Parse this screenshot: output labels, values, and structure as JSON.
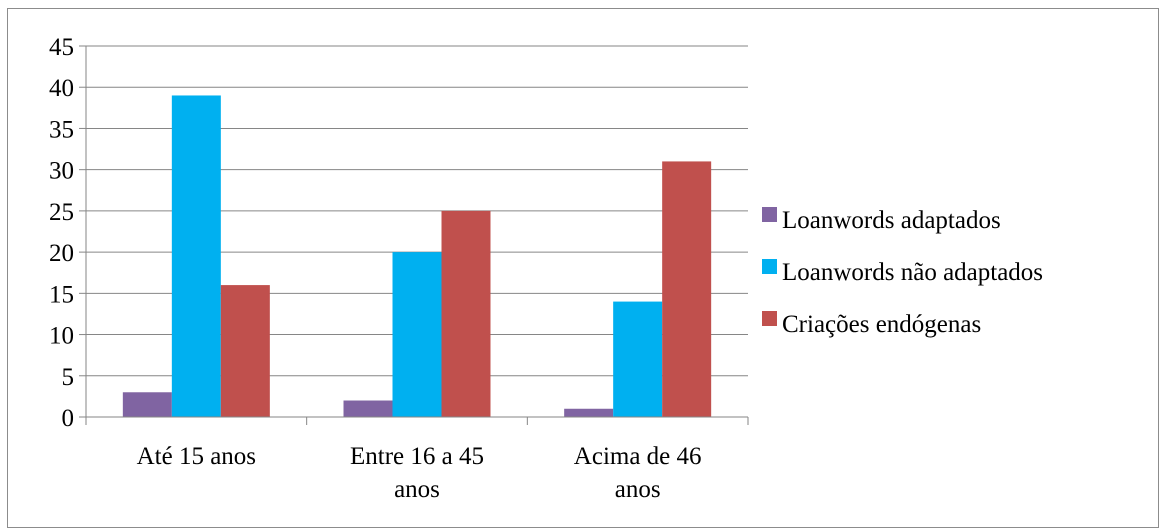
{
  "chart_data": {
    "type": "bar",
    "categories": [
      [
        "Até 15 anos"
      ],
      [
        "Entre 16 a 45",
        "anos"
      ],
      [
        "Acima de 46",
        "anos"
      ]
    ],
    "series": [
      {
        "name": "Loanwords adaptados",
        "values": [
          3,
          2,
          1
        ],
        "color": "#8064a2"
      },
      {
        "name": "Loanwords não adaptados",
        "values": [
          39,
          20,
          14
        ],
        "color": "#00b0f0"
      },
      {
        "name": "Criações endógenas",
        "values": [
          16,
          25,
          31
        ],
        "color": "#c0504d"
      }
    ],
    "ylim": [
      0,
      45
    ],
    "yticks": [
      0,
      5,
      10,
      15,
      20,
      25,
      30,
      35,
      40,
      45
    ],
    "grid": "horizontal",
    "legend_position": "right"
  }
}
